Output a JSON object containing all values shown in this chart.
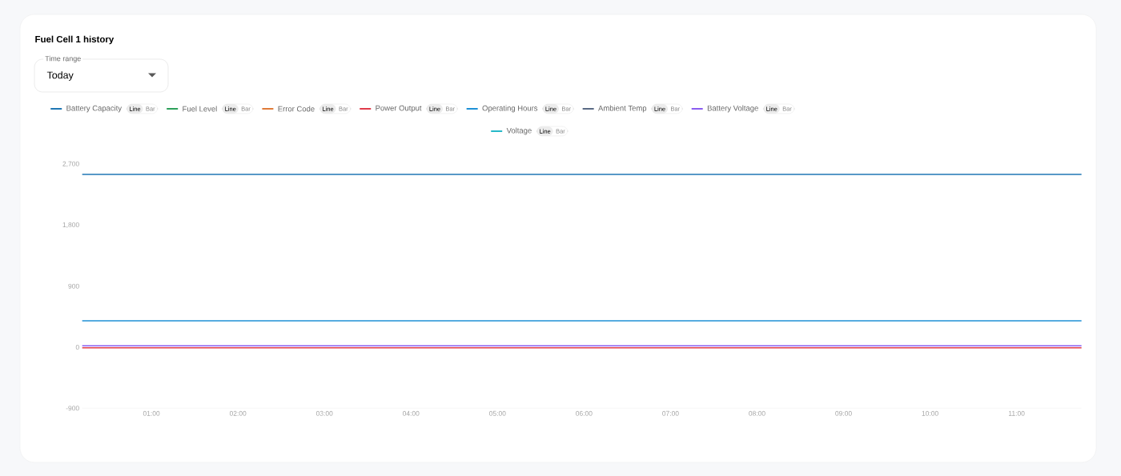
{
  "chart_data": {
    "type": "line",
    "title": "Fuel Cell 1 history",
    "annotations": [
      "Time range",
      "Today",
      "Line",
      "Bar",
      "Line",
      "Bar",
      "Line",
      "Bar",
      "Line",
      "Bar",
      "Line",
      "Bar",
      "Line",
      "Bar",
      "Line",
      "Bar",
      "Line",
      "Bar"
    ],
    "x": [
      0.2,
      11.75
    ],
    "series": [
      {
        "name": "Battery Capacity",
        "color": "#1f77b4",
        "values": [
          2550,
          2550
        ]
      },
      {
        "name": "Fuel Level",
        "color": "#2ca05a",
        "values": [
          null,
          null
        ]
      },
      {
        "name": "Error Code",
        "color": "#e07b39",
        "values": [
          null,
          null
        ]
      },
      {
        "name": "Power Output",
        "color": "#e03b4a",
        "values": [
          -10,
          -10
        ]
      },
      {
        "name": "Operating Hours",
        "color": "#1e90d6",
        "values": [
          390,
          390
        ]
      },
      {
        "name": "Ambient Temp",
        "color": "#5a6a85",
        "values": [
          null,
          null
        ]
      },
      {
        "name": "Battery Voltage",
        "color": "#8a5cf0",
        "values": [
          20,
          20
        ]
      },
      {
        "name": "Voltage",
        "color": "#26b8c8",
        "values": [
          null,
          null
        ]
      }
    ],
    "xlim": [
      0.2,
      11.75
    ],
    "xticks": [
      {
        "value": 1,
        "label": "01:00"
      },
      {
        "value": 2,
        "label": "02:00"
      },
      {
        "value": 3,
        "label": "03:00"
      },
      {
        "value": 4,
        "label": "04:00"
      },
      {
        "value": 5,
        "label": "05:00"
      },
      {
        "value": 6,
        "label": "06:00"
      },
      {
        "value": 7,
        "label": "07:00"
      },
      {
        "value": 8,
        "label": "08:00"
      },
      {
        "value": 9,
        "label": "09:00"
      },
      {
        "value": 10,
        "label": "10:00"
      },
      {
        "value": 11,
        "label": "11:00"
      }
    ],
    "ylim": [
      -900,
      2700
    ],
    "yticks": [
      {
        "value": -900,
        "label": "-900"
      },
      {
        "value": 0,
        "label": "0"
      },
      {
        "value": 900,
        "label": "900"
      },
      {
        "value": 1800,
        "label": "1,800"
      },
      {
        "value": 2700,
        "label": "2,700"
      }
    ],
    "legend": "top"
  }
}
